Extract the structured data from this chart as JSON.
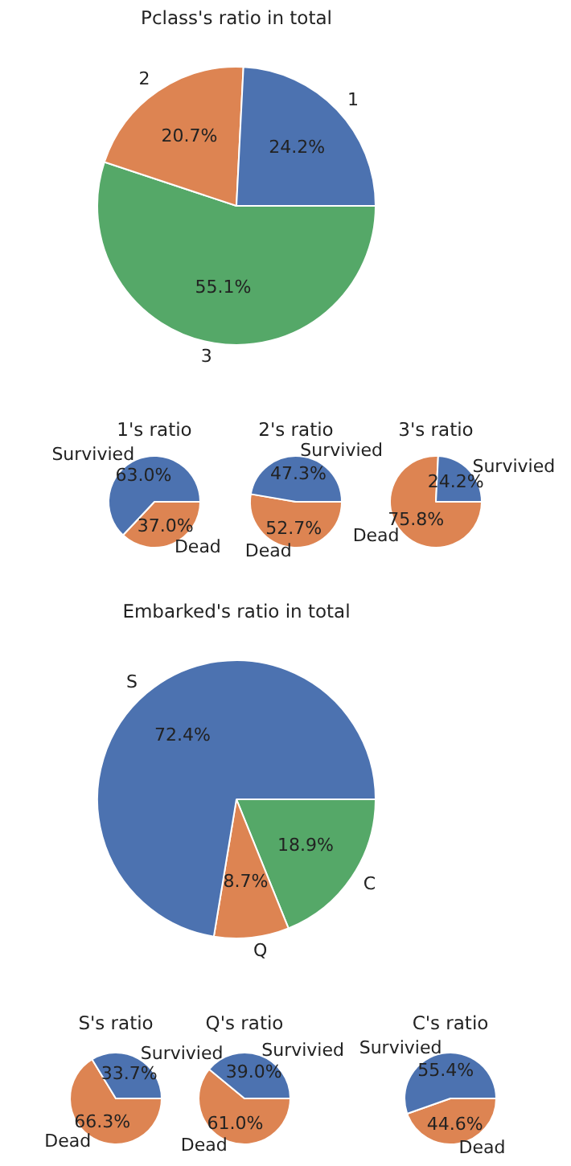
{
  "chart_data": [
    {
      "type": "pie",
      "title": "Pclass's ratio in total",
      "categories": [
        "1",
        "2",
        "3"
      ],
      "values": [
        24.2,
        20.7,
        55.1
      ],
      "colors": [
        "#4c72b0",
        "#dd8452",
        "#55a868"
      ],
      "value_labels": [
        "24.2%",
        "20.7%",
        "55.1%"
      ]
    },
    {
      "type": "pie",
      "title": "1's ratio",
      "categories": [
        "Survivied",
        "Dead"
      ],
      "values": [
        63.0,
        37.0
      ],
      "colors": [
        "#4c72b0",
        "#dd8452"
      ],
      "value_labels": [
        "63.0%",
        "37.0%"
      ]
    },
    {
      "type": "pie",
      "title": "2's ratio",
      "categories": [
        "Survivied",
        "Dead"
      ],
      "values": [
        47.3,
        52.7
      ],
      "colors": [
        "#4c72b0",
        "#dd8452"
      ],
      "value_labels": [
        "47.3%",
        "52.7%"
      ]
    },
    {
      "type": "pie",
      "title": "3's ratio",
      "categories": [
        "Survivied",
        "Dead"
      ],
      "values": [
        24.2,
        75.8
      ],
      "colors": [
        "#4c72b0",
        "#dd8452"
      ],
      "value_labels": [
        "24.2%",
        "75.8%"
      ]
    },
    {
      "type": "pie",
      "title": "Embarked's ratio in total",
      "categories": [
        "S",
        "Q",
        "C"
      ],
      "values": [
        72.4,
        8.7,
        18.9
      ],
      "colors": [
        "#4c72b0",
        "#dd8452",
        "#55a868"
      ],
      "value_labels": [
        "72.4%",
        "8.7%",
        "18.9%"
      ]
    },
    {
      "type": "pie",
      "title": "S's ratio",
      "categories": [
        "Survivied",
        "Dead"
      ],
      "values": [
        33.7,
        66.3
      ],
      "colors": [
        "#4c72b0",
        "#dd8452"
      ],
      "value_labels": [
        "33.7%",
        "66.3%"
      ]
    },
    {
      "type": "pie",
      "title": "Q's ratio",
      "categories": [
        "Survivied",
        "Dead"
      ],
      "values": [
        39.0,
        61.0
      ],
      "colors": [
        "#4c72b0",
        "#dd8452"
      ],
      "value_labels": [
        "39.0%",
        "61.0%"
      ]
    },
    {
      "type": "pie",
      "title": "C's ratio",
      "categories": [
        "Survivied",
        "Dead"
      ],
      "values": [
        55.4,
        44.6
      ],
      "colors": [
        "#4c72b0",
        "#dd8452"
      ],
      "value_labels": [
        "55.4%",
        "44.6%"
      ]
    }
  ]
}
